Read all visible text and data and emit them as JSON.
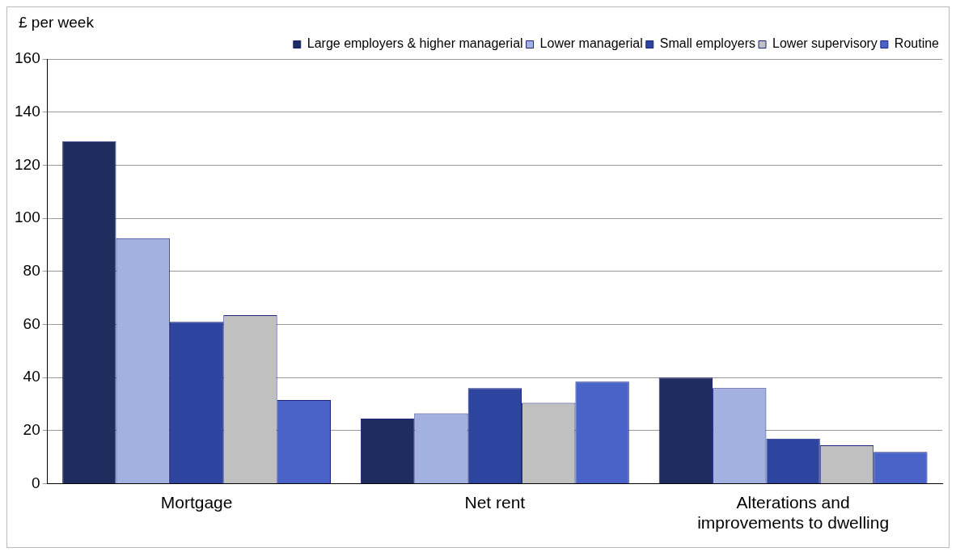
{
  "chart_data": {
    "type": "bar",
    "ylabel": "£ per week",
    "categories": [
      "Mortgage",
      "Net rent",
      "Alterations and improvements to dwelling"
    ],
    "series": [
      {
        "name": "Large employers & higher managerial",
        "color": "#1f2d5e",
        "values": [
          129,
          24.5,
          40
        ]
      },
      {
        "name": "Lower managerial",
        "color": "#a3b1e0",
        "values": [
          92.5,
          26.5,
          36
        ]
      },
      {
        "name": "Small employers",
        "color": "#2e45a0",
        "values": [
          61,
          36,
          17
        ]
      },
      {
        "name": "Lower supervisory",
        "color": "#c0c0c0",
        "values": [
          63.5,
          30.5,
          14.5
        ]
      },
      {
        "name": "Routine",
        "color": "#4a63c8",
        "values": [
          31.5,
          38.5,
          12
        ]
      }
    ],
    "ylim": [
      0,
      160
    ],
    "yticks": [
      0,
      20,
      40,
      60,
      80,
      100,
      120,
      140,
      160
    ],
    "grid": "y",
    "legend": "top"
  }
}
